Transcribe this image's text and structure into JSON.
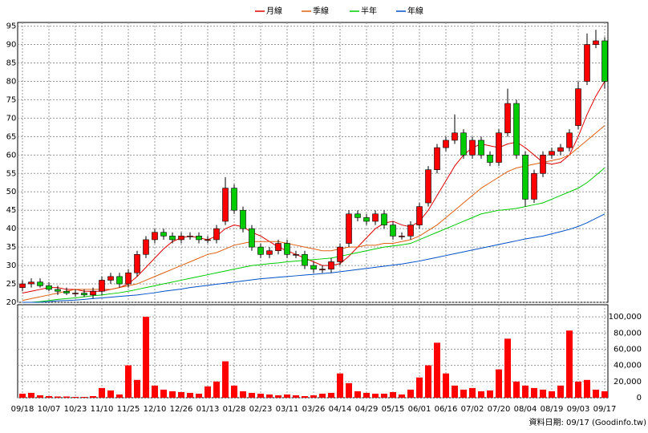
{
  "chart_data": {
    "type": "candlestick",
    "legend": [
      "月線",
      "季線",
      "半年",
      "年線"
    ],
    "footer": "資料日期: 09/17 (Goodinfo.tw)",
    "categories": [
      "09/18",
      null,
      null,
      "10/07",
      null,
      null,
      "10/23",
      null,
      null,
      "11/10",
      null,
      null,
      "11/25",
      null,
      null,
      "12/10",
      null,
      null,
      "12/26",
      null,
      null,
      "01/13",
      null,
      null,
      "01/28",
      null,
      null,
      "02/23",
      null,
      null,
      "03/11",
      null,
      null,
      "03/26",
      null,
      null,
      "04/14",
      null,
      null,
      "04/29",
      null,
      null,
      "05/15",
      null,
      null,
      "06/01",
      null,
      null,
      "06/16",
      null,
      null,
      "07/02",
      null,
      null,
      "07/20",
      null,
      null,
      "08/04",
      null,
      null,
      "08/19",
      null,
      null,
      "09/03",
      null,
      null,
      "09/17"
    ],
    "open": [
      24,
      25,
      25.5,
      24.5,
      23.5,
      23,
      22.5,
      22.5,
      22,
      23,
      26,
      27,
      25,
      28,
      33,
      37,
      39,
      38,
      37,
      38,
      38,
      37,
      37,
      42,
      51,
      45,
      40,
      35,
      33,
      34,
      36,
      33,
      33,
      30,
      29,
      29,
      31,
      36,
      44,
      43,
      42,
      44,
      41,
      38,
      38,
      41,
      47,
      56,
      62,
      64,
      66,
      60,
      64,
      60,
      58,
      66,
      74,
      60,
      48,
      55,
      60,
      61,
      62,
      68,
      80,
      90,
      91
    ],
    "high": [
      26,
      26.5,
      26.5,
      25.5,
      24.5,
      24,
      23.5,
      23.5,
      24,
      27,
      28,
      28,
      29,
      34,
      38,
      40,
      40,
      39,
      39,
      39,
      39,
      38,
      41,
      54,
      52,
      46,
      41,
      36,
      35,
      37,
      37,
      34,
      34,
      31,
      30,
      32,
      36,
      45,
      45,
      44,
      45,
      45,
      42,
      39,
      42,
      47,
      57,
      63,
      65,
      71,
      67,
      65,
      65,
      61,
      67,
      78,
      75,
      61,
      56,
      61,
      62,
      63,
      67,
      80,
      93,
      94,
      92
    ],
    "low": [
      23,
      24,
      24,
      23,
      22,
      22,
      21.5,
      21.5,
      21,
      22,
      25,
      24,
      24,
      27,
      32,
      36,
      37,
      36,
      36,
      37,
      36,
      36,
      36,
      41,
      44,
      39,
      34,
      32,
      32,
      33,
      32,
      32,
      29,
      28,
      28,
      28,
      30,
      35,
      42,
      41,
      41,
      40,
      37,
      37,
      37,
      40,
      46,
      55,
      61,
      63,
      59,
      59,
      59,
      57,
      57,
      65,
      59,
      46,
      47,
      54,
      59,
      60,
      61,
      67,
      79,
      89,
      78
    ],
    "close": [
      25,
      25.5,
      24.5,
      23.5,
      23,
      22.5,
      22.5,
      22,
      23,
      26,
      27,
      25,
      28,
      33,
      37,
      39,
      38,
      37,
      38,
      38,
      37,
      37,
      40,
      51,
      45,
      40,
      35,
      33,
      34,
      36,
      33,
      33,
      30,
      29,
      29,
      31,
      35,
      44,
      43,
      42,
      44,
      41,
      38,
      38,
      41,
      46,
      56,
      62,
      64,
      66,
      60,
      64,
      60,
      58,
      66,
      74,
      60,
      48,
      55,
      60,
      61,
      62,
      66,
      78,
      90,
      91,
      80
    ],
    "up_color": "#ff0000",
    "down_color": "#00cc00",
    "series": [
      {
        "name": "月線",
        "color": "#e00000",
        "values": [
          22.5,
          23,
          23.5,
          24,
          24,
          23.5,
          23.5,
          23,
          23,
          23,
          23.5,
          24,
          25,
          27,
          29.5,
          32,
          34.5,
          36.5,
          37.5,
          38,
          37.5,
          37,
          38,
          40,
          41,
          40.5,
          39,
          38,
          36.5,
          35,
          34,
          33,
          32,
          31,
          30,
          30,
          30.5,
          32.5,
          35,
          37.5,
          40,
          41.5,
          42,
          41,
          40.5,
          42,
          45,
          49,
          53,
          57,
          60,
          62,
          63,
          62.5,
          62,
          63,
          63.5,
          62,
          60,
          58,
          57.5,
          58,
          60,
          65,
          71,
          76,
          80
        ]
      },
      {
        "name": "季線",
        "color": "#e06010",
        "values": [
          20.5,
          21,
          21.5,
          22,
          22.5,
          23,
          23.5,
          23.5,
          23.5,
          23.5,
          23.5,
          24,
          24.5,
          25,
          26,
          27,
          28,
          29,
          30,
          31,
          32,
          33,
          33.5,
          34.5,
          35.5,
          36,
          36.5,
          36.5,
          36.5,
          36.5,
          36,
          35.5,
          35,
          34.5,
          34,
          34,
          34.5,
          35,
          35,
          35.5,
          35.5,
          36,
          36,
          36.5,
          37,
          38,
          39.5,
          41,
          43,
          45,
          47,
          49,
          51,
          52.5,
          54,
          55.5,
          56.5,
          57,
          57.5,
          58,
          58.5,
          59,
          60,
          62,
          64,
          66,
          68
        ]
      },
      {
        "name": "半年",
        "color": "#00cc00",
        "values": [
          20,
          20,
          20.2,
          20.5,
          20.8,
          21,
          21.2,
          21.5,
          21.8,
          22,
          22.3,
          22.6,
          23,
          23.5,
          24,
          24.5,
          25,
          25.5,
          26,
          26.5,
          27,
          27.5,
          28,
          28.5,
          29,
          29.5,
          30,
          30.2,
          30.5,
          30.7,
          31,
          31.2,
          31.4,
          31.6,
          31.8,
          32,
          32.5,
          33,
          33.5,
          34,
          34.5,
          35,
          35.3,
          35.6,
          36,
          37,
          38,
          39,
          40,
          41,
          42,
          43,
          44,
          44.5,
          45,
          45.2,
          45.5,
          46,
          46.5,
          47,
          48,
          49,
          50,
          51,
          52.5,
          54.5,
          56.5
        ]
      },
      {
        "name": "年線",
        "color": "#0050c8",
        "values": [
          20,
          20,
          20,
          20.2,
          20.4,
          20.5,
          20.6,
          20.8,
          21,
          21.2,
          21.4,
          21.6,
          21.8,
          22,
          22.3,
          22.6,
          23,
          23.3,
          23.6,
          24,
          24.3,
          24.6,
          24.9,
          25.2,
          25.5,
          25.8,
          26.1,
          26.4,
          26.6,
          26.8,
          27,
          27.2,
          27.4,
          27.6,
          27.8,
          28,
          28.3,
          28.6,
          28.9,
          29.2,
          29.5,
          29.8,
          30.1,
          30.4,
          30.8,
          31.2,
          31.7,
          32.2,
          32.7,
          33.2,
          33.7,
          34.2,
          34.7,
          35.2,
          35.7,
          36.2,
          36.7,
          37.2,
          37.6,
          38,
          38.6,
          39.2,
          39.8,
          40.6,
          41.6,
          42.8,
          44
        ]
      }
    ],
    "ylim": [
      20,
      96
    ],
    "yticks": [
      20,
      25,
      30,
      35,
      40,
      45,
      50,
      55,
      60,
      65,
      70,
      75,
      80,
      85,
      90,
      95
    ],
    "volume": {
      "color": "#ff0000",
      "values": [
        5000,
        6000,
        3000,
        2000,
        1500,
        1500,
        1000,
        1000,
        2000,
        12000,
        9000,
        4000,
        40000,
        22000,
        100000,
        15000,
        10000,
        8000,
        7000,
        6000,
        5000,
        14000,
        20000,
        45000,
        15000,
        8000,
        6000,
        5000,
        4000,
        3000,
        4000,
        3000,
        2000,
        3000,
        5000,
        6000,
        30000,
        18000,
        8000,
        6000,
        5000,
        5000,
        7000,
        4000,
        10000,
        25000,
        40000,
        68000,
        30000,
        15000,
        10000,
        12000,
        8000,
        9000,
        35000,
        73000,
        20000,
        15000,
        12000,
        10000,
        8000,
        15000,
        83000,
        20000,
        22000,
        10000,
        8000
      ],
      "ylim": [
        0,
        115000
      ],
      "yticks": [
        0,
        {
          "value": 20000,
          "label": "20,000"
        },
        {
          "value": 40000,
          "label": "40,000"
        },
        {
          "value": 60000,
          "label": "60,000"
        },
        {
          "value": 80000,
          "label": "80,000"
        },
        {
          "value": 100000,
          "label": "100,000"
        }
      ]
    },
    "grid": true
  }
}
